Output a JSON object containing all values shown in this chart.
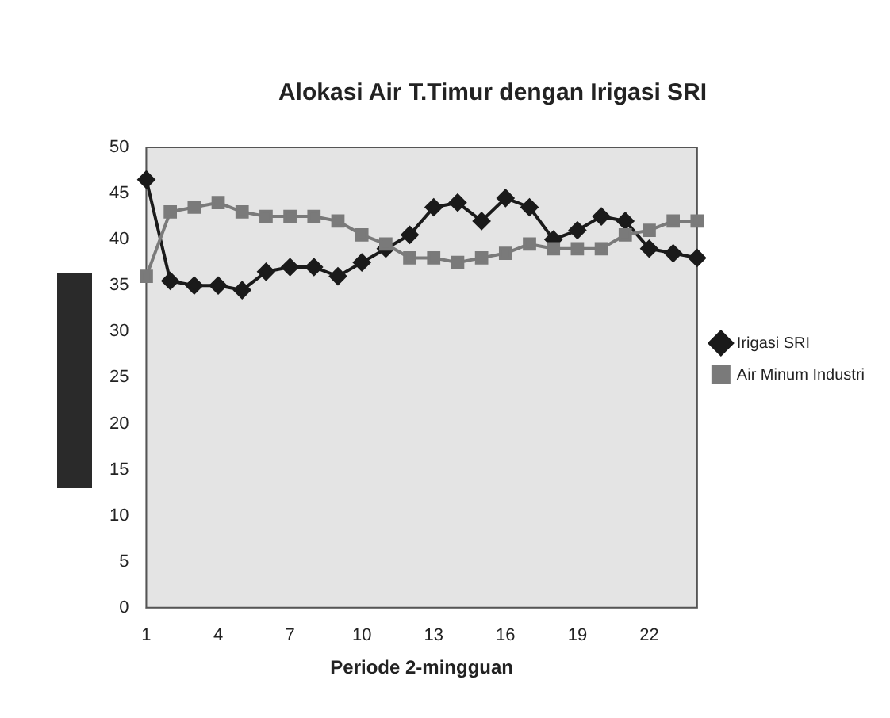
{
  "chart_data": {
    "type": "line",
    "title": "Alokasi Air T.Timur dengan Irigasi SRI",
    "xlabel": "Periode 2-mingguan",
    "categories": [
      "1",
      null,
      null,
      "4",
      null,
      null,
      "7",
      null,
      null,
      "10",
      null,
      null,
      "13",
      null,
      null,
      "16",
      null,
      null,
      "19",
      null,
      null,
      "22",
      null,
      null
    ],
    "series": [
      {
        "name": "Irigasi SRI",
        "color": "#1a1a1a",
        "marker": "diamond",
        "values": [
          46.5,
          35.5,
          35,
          35,
          34.5,
          36.5,
          37,
          37,
          36,
          37.5,
          39,
          40.5,
          43.5,
          44,
          42,
          44.5,
          43.5,
          40,
          41,
          42.5,
          42,
          39,
          38.5,
          38
        ]
      },
      {
        "name": "Air Minum Industri",
        "color": "#7a7a7a",
        "marker": "square",
        "values": [
          36,
          43,
          43.5,
          44,
          43,
          42.5,
          42.5,
          42.5,
          42,
          40.5,
          39.5,
          38,
          38,
          37.5,
          38,
          38.5,
          39.5,
          39,
          39,
          39,
          40.5,
          41,
          42,
          42
        ]
      }
    ],
    "ylim": [
      0,
      50
    ],
    "yticks": [
      0,
      5,
      10,
      15,
      20,
      25,
      30,
      35,
      40,
      45,
      50
    ],
    "grid": false,
    "legend": "right",
    "line_style": "solid"
  }
}
